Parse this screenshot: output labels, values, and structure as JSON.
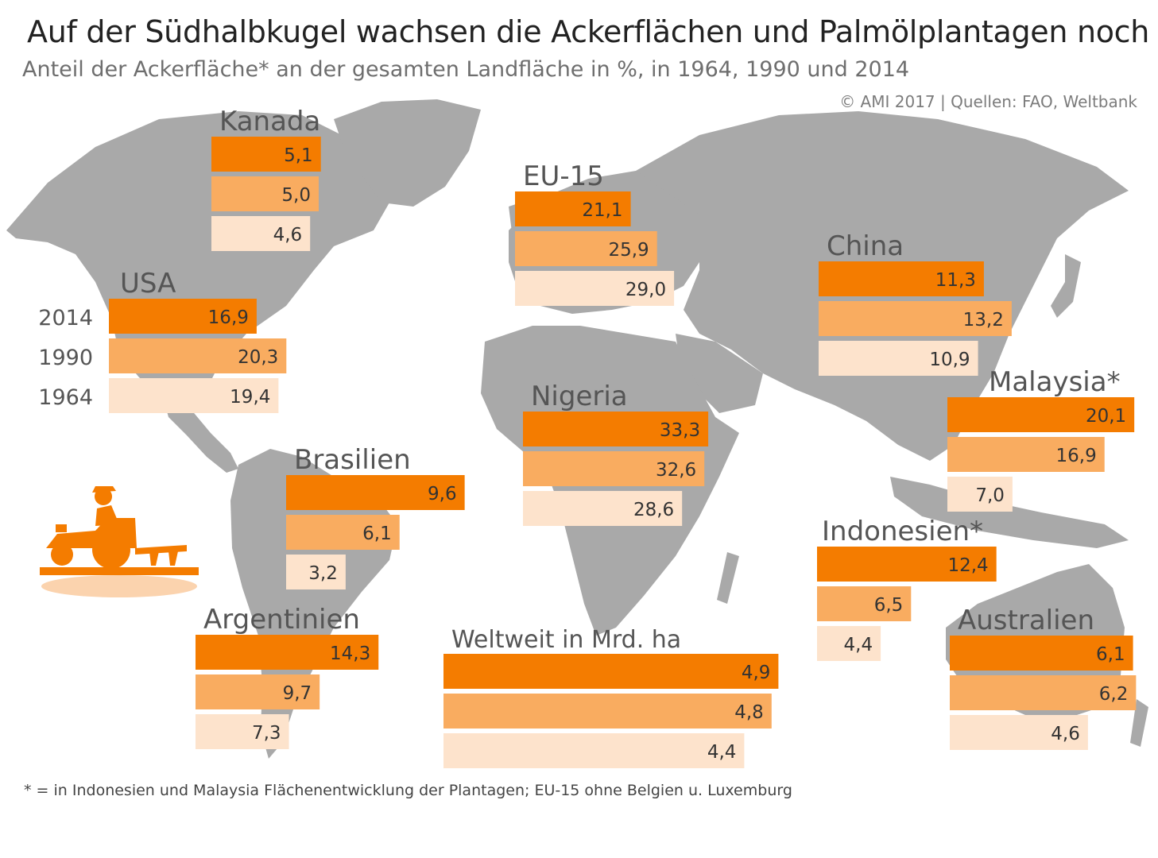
{
  "title": "Auf der Südhalbkugel wachsen die Ackerflächen und Palmölplantagen noch",
  "subtitle": "Anteil der Ackerfläche* an der gesamten Landfläche in %, in 1964, 1990 und 2014",
  "source": "© AMI 2017 | Quellen: FAO, Weltbank",
  "footnote": "* = in Indonesien und Malaysia Flächenentwicklung der Plantagen; EU-15 ohne Belgien u. Luxemburg",
  "colors": {
    "y2014": "#f47c00",
    "y1990": "#f9ac60",
    "y1964": "#fde3cc",
    "map": "#a9a9a9",
    "value_text": "#333333",
    "label_text": "#555555"
  },
  "icons": [
    "tractor-icon"
  ],
  "chart_data": {
    "type": "bar",
    "orientation": "horizontal",
    "series_names": [
      "2014",
      "1990",
      "1964"
    ],
    "unit": "%",
    "regions": [
      {
        "name": "Kanada",
        "values": [
          5.1,
          5.0,
          4.6
        ],
        "labels": [
          "5,1",
          "5,0",
          "4,6"
        ]
      },
      {
        "name": "USA",
        "values": [
          16.9,
          20.3,
          19.4
        ],
        "labels": [
          "16,9",
          "20,3",
          "19,4"
        ]
      },
      {
        "name": "EU-15",
        "values": [
          21.1,
          25.9,
          29.0
        ],
        "labels": [
          "21,1",
          "25,9",
          "29,0"
        ]
      },
      {
        "name": "China",
        "values": [
          11.3,
          13.2,
          10.9
        ],
        "labels": [
          "11,3",
          "13,2",
          "10,9"
        ]
      },
      {
        "name": "Malaysia*",
        "values": [
          20.1,
          16.9,
          7.0
        ],
        "labels": [
          "20,1",
          "16,9",
          "7,0"
        ]
      },
      {
        "name": "Nigeria",
        "values": [
          33.3,
          32.6,
          28.6
        ],
        "labels": [
          "33,3",
          "32,6",
          "28,6"
        ]
      },
      {
        "name": "Brasilien",
        "values": [
          9.6,
          6.1,
          3.2
        ],
        "labels": [
          "9,6",
          "6,1",
          "3,2"
        ]
      },
      {
        "name": "Indonesien*",
        "values": [
          12.4,
          6.5,
          4.4
        ],
        "labels": [
          "12,4",
          "6,5",
          "4,4"
        ]
      },
      {
        "name": "Argentinien",
        "values": [
          14.3,
          9.7,
          7.3
        ],
        "labels": [
          "14,3",
          "9,7",
          "7,3"
        ]
      },
      {
        "name": "Australien",
        "values": [
          6.1,
          6.2,
          4.6
        ],
        "labels": [
          "6,1",
          "6,2",
          "4,6"
        ]
      },
      {
        "name": "Weltweit in Mrd. ha",
        "unit": "Mrd. ha",
        "values": [
          4.9,
          4.8,
          4.4
        ],
        "labels": [
          "4,9",
          "4,8",
          "4,4"
        ]
      }
    ]
  }
}
